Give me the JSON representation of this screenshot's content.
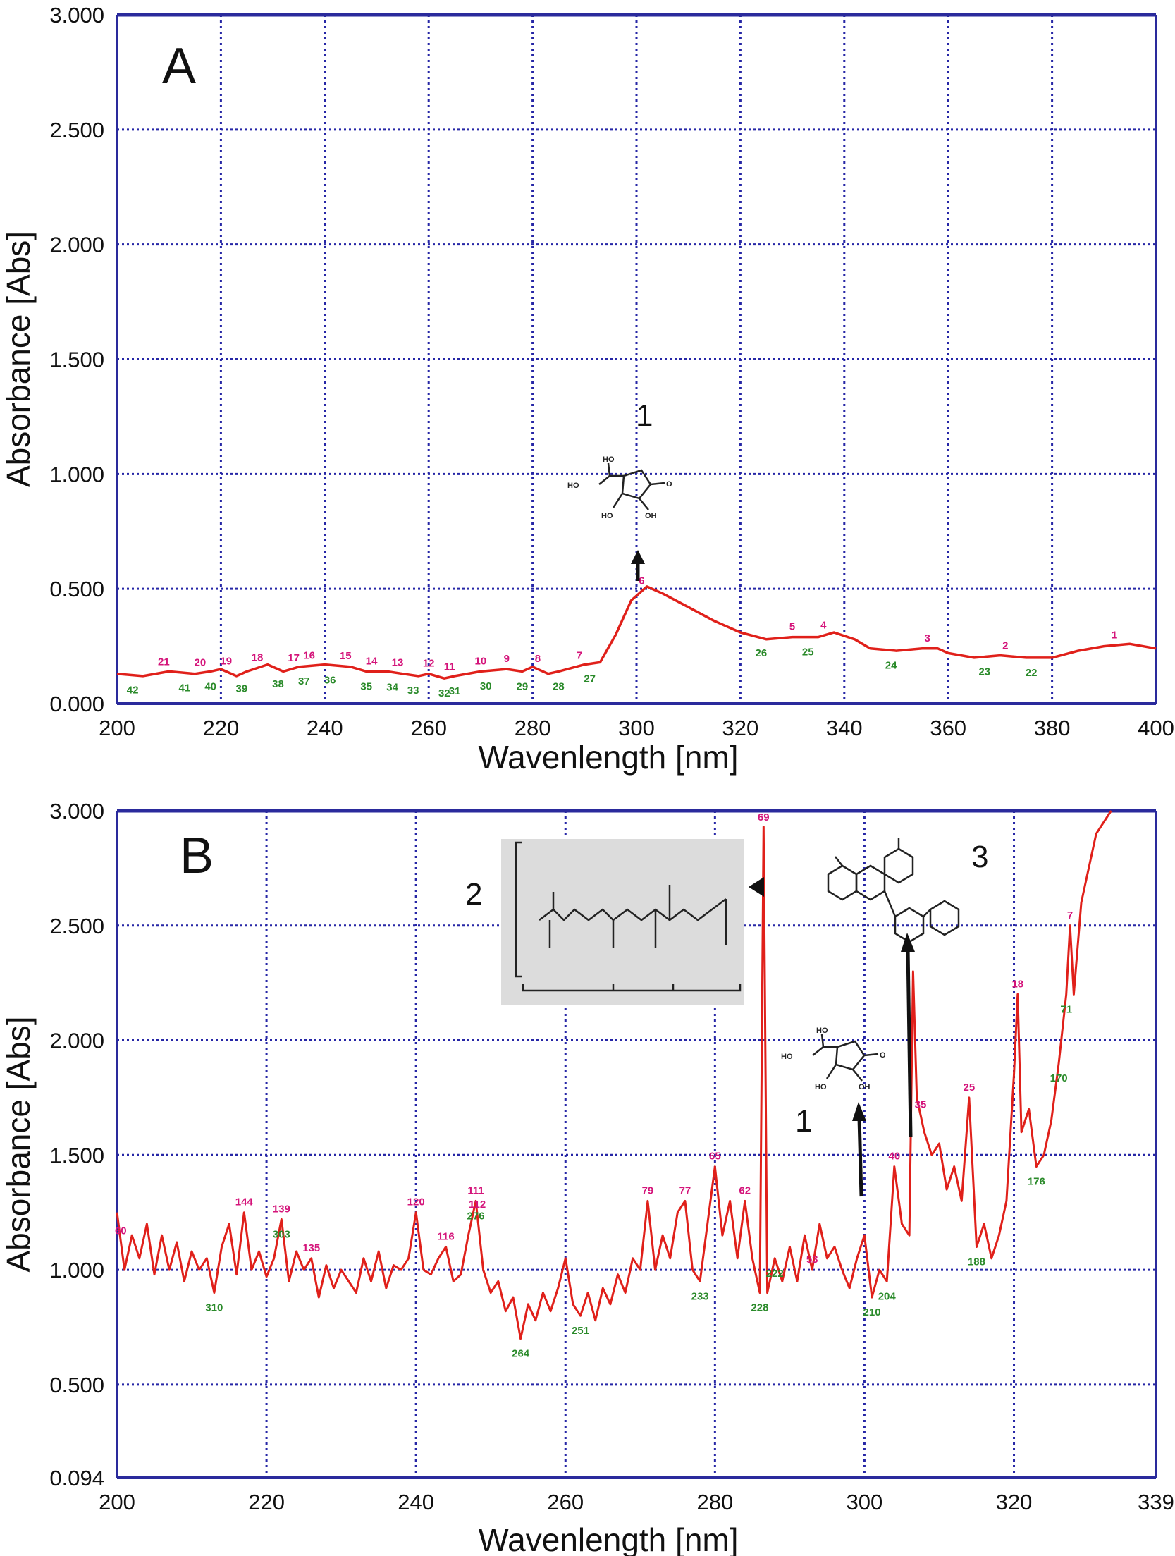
{
  "colors": {
    "curve": "#e0201a",
    "peak_label": "#d4147a",
    "valley_label": "#2a8a2a",
    "grid": "#2626a6",
    "frame": "#2a2a9c",
    "inset_bg": "#dcdcdc"
  },
  "chart_data": [
    {
      "type": "line",
      "panel_label": "A",
      "xlabel": "Wavenlength [nm]",
      "ylabel": "Absorbance [Abs]",
      "xlim": [
        200,
        400
      ],
      "ylim": [
        0,
        3
      ],
      "xticks": [
        "200",
        "220",
        "240",
        "260",
        "280",
        "300",
        "320",
        "340",
        "360",
        "380",
        "400"
      ],
      "yticks": [
        "0.000",
        "0.500",
        "1.000",
        "1.500",
        "2.000",
        "2.500",
        "3.000"
      ],
      "grid": true,
      "x": [
        200,
        205,
        210,
        215,
        218,
        220,
        223,
        225,
        229,
        232,
        235,
        240,
        245,
        248,
        252,
        255,
        258,
        260,
        263,
        265,
        270,
        275,
        278,
        280,
        283,
        285,
        290,
        293,
        296,
        299,
        302,
        305,
        310,
        315,
        320,
        325,
        330,
        335,
        338,
        342,
        345,
        350,
        355,
        358,
        360,
        365,
        370,
        375,
        380,
        385,
        390,
        395,
        400
      ],
      "y": [
        0.13,
        0.12,
        0.14,
        0.13,
        0.14,
        0.15,
        0.12,
        0.14,
        0.17,
        0.14,
        0.16,
        0.17,
        0.16,
        0.14,
        0.14,
        0.13,
        0.12,
        0.13,
        0.11,
        0.12,
        0.14,
        0.15,
        0.14,
        0.16,
        0.13,
        0.14,
        0.17,
        0.18,
        0.3,
        0.45,
        0.51,
        0.48,
        0.42,
        0.36,
        0.31,
        0.28,
        0.29,
        0.29,
        0.31,
        0.28,
        0.24,
        0.23,
        0.24,
        0.24,
        0.22,
        0.2,
        0.21,
        0.2,
        0.2,
        0.23,
        0.25,
        0.26,
        0.24
      ],
      "peak_labels": [
        {
          "t": "21",
          "x": 209
        },
        {
          "t": "20",
          "x": 216
        },
        {
          "t": "19",
          "x": 221
        },
        {
          "t": "18",
          "x": 227
        },
        {
          "t": "17",
          "x": 234
        },
        {
          "t": "16",
          "x": 237
        },
        {
          "t": "15",
          "x": 244
        },
        {
          "t": "14",
          "x": 249
        },
        {
          "t": "13",
          "x": 254
        },
        {
          "t": "12",
          "x": 260
        },
        {
          "t": "11",
          "x": 264
        },
        {
          "t": "10",
          "x": 270
        },
        {
          "t": "9",
          "x": 275
        },
        {
          "t": "8",
          "x": 281
        },
        {
          "t": "7",
          "x": 289
        },
        {
          "t": "6",
          "x": 301
        },
        {
          "t": "5",
          "x": 330
        },
        {
          "t": "4",
          "x": 336
        },
        {
          "t": "3",
          "x": 356
        },
        {
          "t": "2",
          "x": 371
        },
        {
          "t": "1",
          "x": 392
        }
      ],
      "valley_labels": [
        {
          "t": "42",
          "x": 203
        },
        {
          "t": "41",
          "x": 213
        },
        {
          "t": "40",
          "x": 218
        },
        {
          "t": "39",
          "x": 224
        },
        {
          "t": "38",
          "x": 231
        },
        {
          "t": "37",
          "x": 236
        },
        {
          "t": "36",
          "x": 241
        },
        {
          "t": "35",
          "x": 248
        },
        {
          "t": "34",
          "x": 253
        },
        {
          "t": "33",
          "x": 257
        },
        {
          "t": "32",
          "x": 263
        },
        {
          "t": "31",
          "x": 265
        },
        {
          "t": "30",
          "x": 271
        },
        {
          "t": "29",
          "x": 278
        },
        {
          "t": "28",
          "x": 285
        },
        {
          "t": "27",
          "x": 291
        },
        {
          "t": "26",
          "x": 324
        },
        {
          "t": "25",
          "x": 333
        },
        {
          "t": "24",
          "x": 349
        },
        {
          "t": "23",
          "x": 367
        },
        {
          "t": "22",
          "x": 376
        }
      ],
      "annotations": [
        {
          "text": "1",
          "target": "peak near 301 nm"
        }
      ]
    },
    {
      "type": "line",
      "panel_label": "B",
      "xlabel": "Wavenlength [nm]",
      "ylabel": "Absorbance [Abs]",
      "xlim": [
        200,
        339
      ],
      "ylim": [
        0.094,
        3
      ],
      "xticks": [
        "200",
        "220",
        "240",
        "260",
        "280",
        "300",
        "320",
        "339"
      ],
      "yticks": [
        "0.094",
        "0.500",
        "1.000",
        "1.500",
        "2.000",
        "2.500",
        "3.000"
      ],
      "grid": true,
      "x": [
        200,
        201,
        202,
        203,
        204,
        205,
        206,
        207,
        208,
        209,
        210,
        211,
        212,
        213,
        214,
        215,
        216,
        217,
        218,
        219,
        220,
        221,
        222,
        223,
        224,
        225,
        226,
        227,
        228,
        229,
        230,
        231,
        232,
        233,
        234,
        235,
        236,
        237,
        238,
        239,
        240,
        241,
        242,
        243,
        244,
        245,
        246,
        247,
        248,
        249,
        250,
        251,
        252,
        253,
        254,
        255,
        256,
        257,
        258,
        259,
        260,
        261,
        262,
        263,
        264,
        265,
        266,
        267,
        268,
        269,
        270,
        271,
        272,
        273,
        274,
        275,
        276,
        277,
        278,
        279,
        280,
        281,
        282,
        283,
        284,
        285,
        286,
        286.5,
        287,
        288,
        289,
        290,
        291,
        292,
        293,
        294,
        295,
        296,
        297,
        298,
        299,
        300,
        301,
        302,
        303,
        304,
        305,
        306,
        306.5,
        307,
        308,
        309,
        310,
        311,
        312,
        313,
        314,
        315,
        316,
        317,
        318,
        319,
        320,
        320.5,
        321,
        322,
        323,
        324,
        325,
        326,
        327,
        327.5,
        328,
        329,
        330,
        331,
        332,
        333
      ],
      "y": [
        1.25,
        1.0,
        1.15,
        1.05,
        1.2,
        0.98,
        1.15,
        1.0,
        1.12,
        0.95,
        1.08,
        1.0,
        1.05,
        0.9,
        1.1,
        1.2,
        0.98,
        1.25,
        1.0,
        1.08,
        0.97,
        1.05,
        1.22,
        0.95,
        1.08,
        1.0,
        1.05,
        0.88,
        1.02,
        0.92,
        1.0,
        0.95,
        0.9,
        1.05,
        0.95,
        1.08,
        0.92,
        1.02,
        1.0,
        1.05,
        1.25,
        1.0,
        0.98,
        1.05,
        1.1,
        0.95,
        0.98,
        1.15,
        1.3,
        1.0,
        0.9,
        0.95,
        0.82,
        0.88,
        0.7,
        0.85,
        0.78,
        0.9,
        0.82,
        0.92,
        1.05,
        0.85,
        0.8,
        0.9,
        0.78,
        0.92,
        0.85,
        0.98,
        0.9,
        1.05,
        1.0,
        1.3,
        1.0,
        1.15,
        1.05,
        1.25,
        1.3,
        1.0,
        0.95,
        1.2,
        1.45,
        1.15,
        1.3,
        1.05,
        1.3,
        1.05,
        0.9,
        2.93,
        0.9,
        1.05,
        0.95,
        1.1,
        0.95,
        1.15,
        1.0,
        1.2,
        1.05,
        1.1,
        1.0,
        0.92,
        1.05,
        1.15,
        0.88,
        1.0,
        0.95,
        1.45,
        1.2,
        1.15,
        2.3,
        1.75,
        1.6,
        1.5,
        1.55,
        1.35,
        1.45,
        1.3,
        1.75,
        1.1,
        1.2,
        1.05,
        1.15,
        1.3,
        1.85,
        2.2,
        1.6,
        1.7,
        1.45,
        1.5,
        1.65,
        1.9,
        2.2,
        2.5,
        2.2,
        2.6,
        2.75,
        2.9,
        2.95,
        3.0
      ],
      "peak_labels": [
        {
          "t": "60",
          "x": 200.5
        },
        {
          "t": "144",
          "x": 217
        },
        {
          "t": "139",
          "x": 222
        },
        {
          "t": "135",
          "x": 226
        },
        {
          "t": "120",
          "x": 240
        },
        {
          "t": "116",
          "x": 244
        },
        {
          "t": "111",
          "x": 248
        },
        {
          "t": "112",
          "x": 248.2
        },
        {
          "t": "79",
          "x": 271
        },
        {
          "t": "77",
          "x": 276
        },
        {
          "t": "65",
          "x": 280
        },
        {
          "t": "62",
          "x": 284
        },
        {
          "t": "69",
          "x": 286.5
        },
        {
          "t": "53",
          "x": 293
        },
        {
          "t": "40",
          "x": 304
        },
        {
          "t": "35",
          "x": 307.5
        },
        {
          "t": "25",
          "x": 314
        },
        {
          "t": "18",
          "x": 320.5
        },
        {
          "t": "7",
          "x": 327.5
        }
      ],
      "valley_labels": [
        {
          "t": "310",
          "x": 213
        },
        {
          "t": "303",
          "x": 222
        },
        {
          "t": "276",
          "x": 248
        },
        {
          "t": "264",
          "x": 254
        },
        {
          "t": "251",
          "x": 262
        },
        {
          "t": "233",
          "x": 278
        },
        {
          "t": "228",
          "x": 286
        },
        {
          "t": "222",
          "x": 288
        },
        {
          "t": "210",
          "x": 301
        },
        {
          "t": "204",
          "x": 303
        },
        {
          "t": "188",
          "x": 315
        },
        {
          "t": "176",
          "x": 323
        },
        {
          "t": "170",
          "x": 326
        },
        {
          "t": "71",
          "x": 327
        }
      ],
      "annotations": [
        {
          "text": "1",
          "target": "~300 nm"
        },
        {
          "text": "2",
          "target": "spike ~287 nm"
        },
        {
          "text": "3",
          "target": "spike ~306.5 nm"
        }
      ]
    }
  ]
}
